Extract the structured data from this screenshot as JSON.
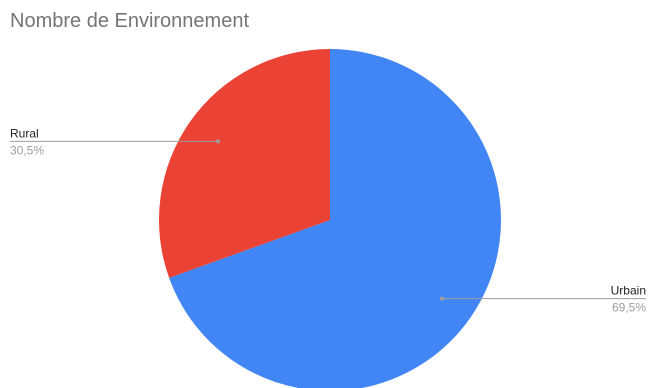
{
  "chart_data": {
    "type": "pie",
    "title": "Nombre de Environnement",
    "slices": [
      {
        "label": "Urbain",
        "value": 69.5,
        "percent_label": "69,5%",
        "color": "#4285f4"
      },
      {
        "label": "Rural",
        "value": 30.5,
        "percent_label": "30,5%",
        "color": "#ea4335"
      }
    ]
  }
}
